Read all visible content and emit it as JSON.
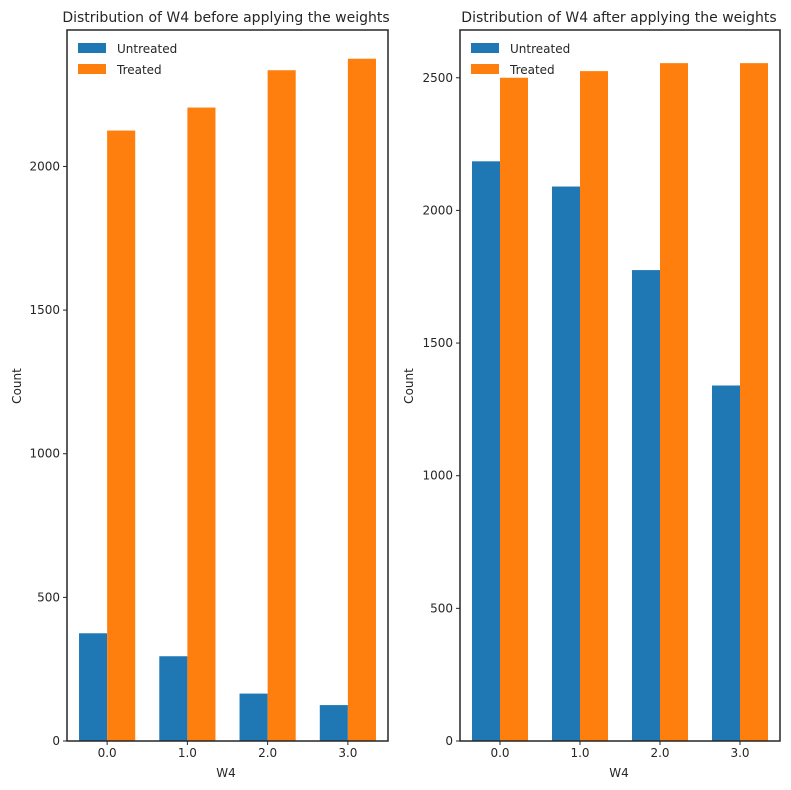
{
  "colors": {
    "untreated": "#1f77b4",
    "treated": "#ff7f0e",
    "axis": "#262626"
  },
  "chart_data": [
    {
      "type": "bar",
      "title": "Distribution of W4 before applying the weights",
      "xlabel": "W4",
      "ylabel": "Count",
      "categories": [
        "0.0",
        "1.0",
        "2.0",
        "3.0"
      ],
      "series": [
        {
          "name": "Untreated",
          "values": [
            375,
            295,
            165,
            125
          ]
        },
        {
          "name": "Treated",
          "values": [
            2125,
            2205,
            2335,
            2375
          ]
        }
      ],
      "ylim": [
        0,
        2475
      ],
      "yticks": [
        0,
        500,
        1000,
        1500,
        2000
      ],
      "legend": "top-left",
      "grid": false
    },
    {
      "type": "bar",
      "title": "Distribution of W4 after applying the weights",
      "xlabel": "W4",
      "ylabel": "Count",
      "categories": [
        "0.0",
        "1.0",
        "2.0",
        "3.0"
      ],
      "series": [
        {
          "name": "Untreated",
          "values": [
            2185,
            2090,
            1775,
            1340
          ]
        },
        {
          "name": "Treated",
          "values": [
            2500,
            2525,
            2555,
            2555
          ]
        }
      ],
      "ylim": [
        0,
        2680
      ],
      "yticks": [
        0,
        500,
        1000,
        1500,
        2000,
        2500
      ],
      "legend": "top-left",
      "grid": false
    }
  ]
}
